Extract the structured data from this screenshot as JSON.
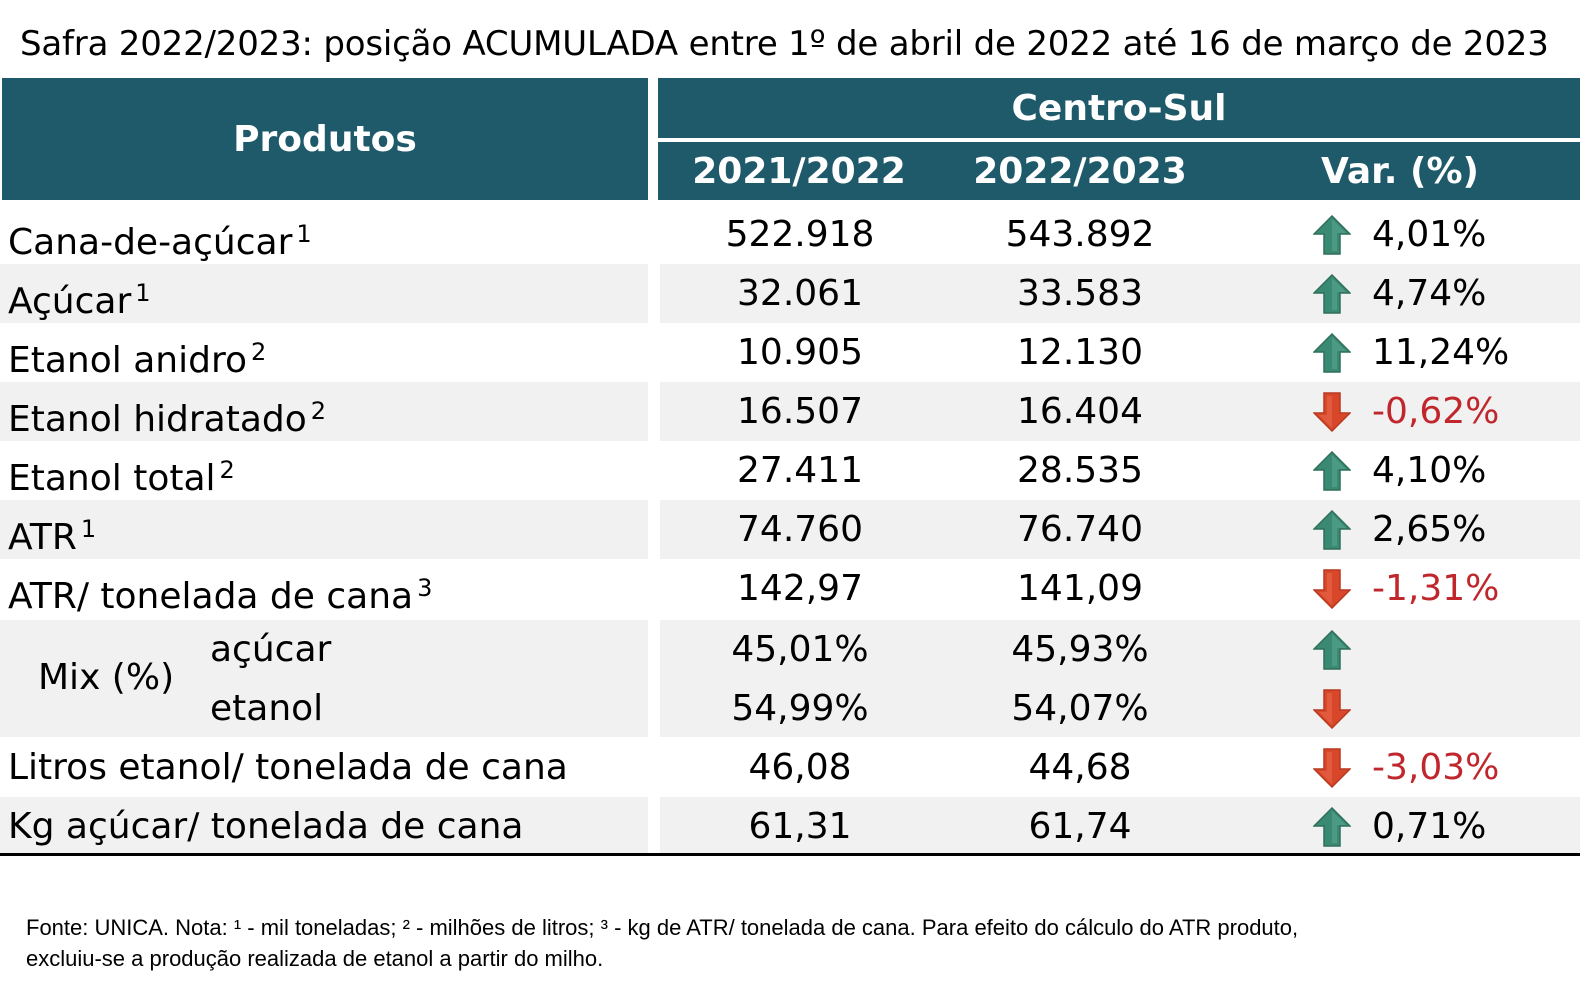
{
  "title": "Safra 2022/2023: posição ACUMULADA entre 1º de abril de 2022 até 16 de março de 2023",
  "header": {
    "products": "Produtos",
    "region": "Centro-Sul",
    "col1": "2021/2022",
    "col2": "2022/2023",
    "col3": "Var. (%)"
  },
  "colors": {
    "header_bg": "#1f5a6b",
    "up": "#3a8a73",
    "down": "#d9472b",
    "neg_text": "#c0272d"
  },
  "rows": [
    {
      "label": "Cana-de-açúcar",
      "sup": "1",
      "v1": "522.918",
      "v2": "543.892",
      "var": "4,01%",
      "dir": "up"
    },
    {
      "label": "Açúcar",
      "sup": "1",
      "v1": "32.061",
      "v2": "33.583",
      "var": "4,74%",
      "dir": "up"
    },
    {
      "label": "Etanol anidro",
      "sup": "2",
      "v1": "10.905",
      "v2": "12.130",
      "var": "11,24%",
      "dir": "up"
    },
    {
      "label": "Etanol hidratado",
      "sup": "2",
      "v1": "16.507",
      "v2": "16.404",
      "var": "-0,62%",
      "dir": "down"
    },
    {
      "label": "Etanol total",
      "sup": "2",
      "v1": "27.411",
      "v2": "28.535",
      "var": "4,10%",
      "dir": "up"
    },
    {
      "label": "ATR",
      "sup": "1",
      "v1": "74.760",
      "v2": "76.740",
      "var": "2,65%",
      "dir": "up"
    },
    {
      "label": "ATR/ tonelada de cana",
      "sup": "3",
      "v1": "142,97",
      "v2": "141,09",
      "var": "-1,31%",
      "dir": "down"
    }
  ],
  "mix": {
    "label": "Mix (%)",
    "sugar": {
      "label": "açúcar",
      "v1": "45,01%",
      "v2": "45,93%",
      "dir": "up"
    },
    "ethanol": {
      "label": "etanol",
      "v1": "54,99%",
      "v2": "54,07%",
      "dir": "down"
    }
  },
  "tail_rows": [
    {
      "label": "Litros etanol/ tonelada de cana",
      "v1": "46,08",
      "v2": "44,68",
      "var": "-3,03%",
      "dir": "down"
    },
    {
      "label": "Kg açúcar/ tonelada de cana",
      "v1": "61,31",
      "v2": "61,74",
      "var": "0,71%",
      "dir": "up"
    }
  ],
  "footnote": {
    "line1": "Fonte: UNICA. Nota: ¹ - mil toneladas; ² - milhões de litros; ³ - kg de ATR/ tonelada de cana. Para efeito do cálculo do ATR produto,",
    "line2": "excluiu-se a produção realizada de etanol a partir do milho."
  }
}
